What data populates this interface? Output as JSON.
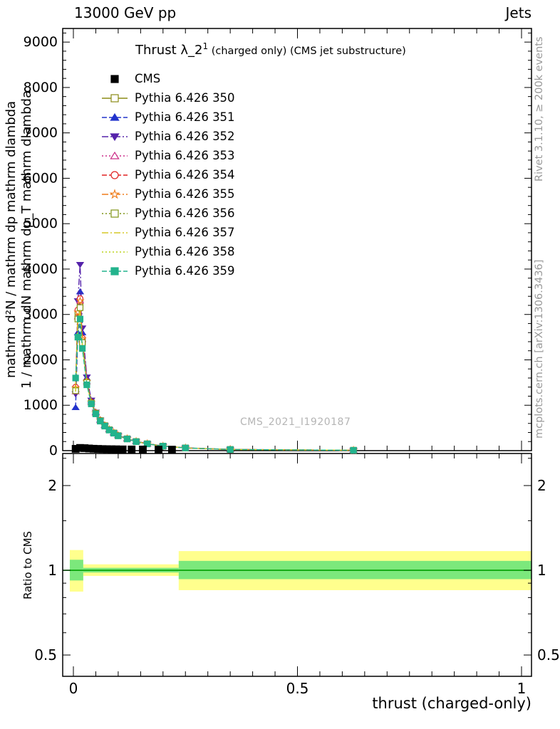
{
  "header": {
    "left": "13000 GeV pp",
    "right": "Jets"
  },
  "title": {
    "main": "Thrust λ_2",
    "sup": "1",
    "rest": " (charged only) (CMS jet substructure)"
  },
  "watermark": "CMS_2021_I1920187",
  "side_labels": {
    "rivet": "Rivet 3.1.10, ≥ 200k events",
    "mcplots": "mcplots.cern.ch [arXiv:1306.3436]",
    "ratio": "Ratio to CMS",
    "ylabel_outer": "mathrm d²N / mathrm dp mathrm dlambda",
    "ylabel_inner": "1 / mathrm dN mathrm dp_T mathrm dlambda"
  },
  "axes": {
    "x": {
      "title": "thrust (charged-only)",
      "min": -0.0238,
      "max": 1.0222,
      "ticks": [
        0,
        0.5,
        1
      ],
      "tick_labels": [
        "0",
        "0.5",
        "1"
      ],
      "minor_step": 0.05
    },
    "main_y": {
      "min": 0,
      "max": 9300,
      "major_step": 1000,
      "minor_step": 200,
      "major_ticks": [
        0,
        1000,
        2000,
        3000,
        4000,
        5000,
        6000,
        7000,
        8000,
        9000
      ]
    },
    "ratio_y": {
      "min": 0.42,
      "max": 2.6,
      "scale": "log",
      "major_ticks": [
        0.5,
        1,
        2
      ],
      "tick_labels": [
        "0.5",
        "1",
        "2"
      ],
      "minor_ticks": [
        0.6,
        0.7,
        0.8,
        0.9,
        1.5,
        2.5
      ]
    }
  },
  "legend": [
    {
      "label": "CMS",
      "color": "#000000",
      "marker": "square-filled",
      "line": "none"
    },
    {
      "label": "Pythia 6.426 350",
      "color": "#8b8b17",
      "marker": "square-open",
      "line": "solid"
    },
    {
      "label": "Pythia 6.426 351",
      "color": "#2233cc",
      "marker": "triangle-filled",
      "line": "dashed"
    },
    {
      "label": "Pythia 6.426 352",
      "color": "#5522aa",
      "marker": "triangle-down-filled",
      "line": "dashdot"
    },
    {
      "label": "Pythia 6.426 353",
      "color": "#cc2d88",
      "marker": "triangle-open",
      "line": "dotted"
    },
    {
      "label": "Pythia 6.426 354",
      "color": "#e02222",
      "marker": "circle-open",
      "line": "dashed"
    },
    {
      "label": "Pythia 6.426 355",
      "color": "#ef7b18",
      "marker": "star-open",
      "line": "dashdot"
    },
    {
      "label": "Pythia 6.426 356",
      "color": "#7f9416",
      "marker": "square-open",
      "line": "dotted"
    },
    {
      "label": "Pythia 6.426 357",
      "color": "#d6c927",
      "marker": "none",
      "line": "dashdot"
    },
    {
      "label": "Pythia 6.426 358",
      "color": "#bcd41c",
      "marker": "none",
      "line": "dotted"
    },
    {
      "label": "Pythia 6.426 359",
      "color": "#23b38d",
      "marker": "square-filled",
      "line": "dashed"
    }
  ],
  "chart_data": {
    "type": "line",
    "x": [
      0.005,
      0.01,
      0.015,
      0.02,
      0.03,
      0.04,
      0.05,
      0.06,
      0.07,
      0.08,
      0.09,
      0.1,
      0.12,
      0.14,
      0.165,
      0.2,
      0.25,
      0.35,
      0.625
    ],
    "series": [
      {
        "name": "Pythia 6.426 350",
        "color": "#8b8b17",
        "marker": "square-open",
        "line": "solid",
        "values": [
          1350,
          3000,
          3250,
          2400,
          1500,
          1050,
          820,
          660,
          550,
          460,
          390,
          330,
          260,
          200,
          150,
          100,
          60,
          25,
          8
        ]
      },
      {
        "name": "Pythia 6.426 351",
        "color": "#2233cc",
        "marker": "triangle-filled",
        "line": "dashed",
        "values": [
          950,
          2600,
          3500,
          2600,
          1600,
          1100,
          850,
          680,
          560,
          470,
          400,
          340,
          265,
          205,
          155,
          102,
          61,
          26,
          8
        ]
      },
      {
        "name": "Pythia 6.426 352",
        "color": "#5522aa",
        "marker": "triangle-down-filled",
        "line": "dashdot",
        "values": [
          1250,
          3300,
          4100,
          2700,
          1620,
          1110,
          845,
          672,
          552,
          462,
          392,
          331,
          261,
          201,
          151,
          100,
          60,
          25,
          8
        ]
      },
      {
        "name": "Pythia 6.426 353",
        "color": "#cc2d88",
        "marker": "triangle-open",
        "line": "dotted",
        "values": [
          1300,
          2950,
          3300,
          2450,
          1520,
          1060,
          830,
          665,
          552,
          462,
          392,
          332,
          262,
          202,
          152,
          101,
          60,
          25,
          8
        ]
      },
      {
        "name": "Pythia 6.426 354",
        "color": "#e02222",
        "marker": "circle-open",
        "line": "dashed",
        "values": [
          1400,
          3100,
          3350,
          2480,
          1530,
          1070,
          835,
          668,
          554,
          464,
          393,
          333,
          263,
          203,
          152,
          101,
          60,
          25,
          8
        ]
      },
      {
        "name": "Pythia 6.426 355",
        "color": "#ef7b18",
        "marker": "star-open",
        "line": "dashdot",
        "values": [
          1380,
          3050,
          3300,
          2460,
          1525,
          1065,
          832,
          666,
          553,
          463,
          392,
          332,
          262,
          202,
          152,
          101,
          60,
          25,
          8
        ]
      },
      {
        "name": "Pythia 6.426 356",
        "color": "#7f9416",
        "marker": "square-open",
        "line": "dotted",
        "values": [
          1320,
          2900,
          3150,
          2380,
          1500,
          1050,
          825,
          660,
          548,
          459,
          389,
          330,
          260,
          200,
          150,
          100,
          60,
          25,
          8
        ]
      },
      {
        "name": "Pythia 6.426 357",
        "color": "#d6c927",
        "marker": "none",
        "line": "dashdot",
        "values": [
          1300,
          2850,
          3050,
          2330,
          1480,
          1040,
          818,
          655,
          544,
          456,
          386,
          328,
          258,
          199,
          149,
          99,
          59,
          25,
          8
        ]
      },
      {
        "name": "Pythia 6.426 358",
        "color": "#bcd41c",
        "marker": "none",
        "line": "dotted",
        "values": [
          1310,
          2880,
          3100,
          2350,
          1490,
          1045,
          820,
          657,
          546,
          457,
          387,
          329,
          259,
          199,
          150,
          100,
          59,
          25,
          8
        ]
      },
      {
        "name": "Pythia 6.426 359",
        "color": "#23b38d",
        "marker": "square-filled",
        "line": "dashed",
        "values": [
          1600,
          2500,
          2900,
          2250,
          1450,
          1030,
          810,
          650,
          540,
          453,
          384,
          326,
          257,
          198,
          149,
          99,
          59,
          25,
          8
        ]
      }
    ],
    "cms": {
      "name": "CMS",
      "color": "#000000",
      "marker": "square-filled",
      "x": [
        0.005,
        0.015,
        0.025,
        0.035,
        0.045,
        0.055,
        0.065,
        0.075,
        0.085,
        0.095,
        0.11,
        0.13,
        0.155,
        0.19,
        0.22
      ],
      "values": [
        40,
        60,
        55,
        48,
        42,
        38,
        35,
        33,
        31,
        30,
        28,
        26,
        25,
        23,
        22
      ]
    },
    "ratio": {
      "line_y": 1,
      "line_color": "#00a000",
      "bands": {
        "yellow": {
          "color": "#ffff8d",
          "segments": [
            {
              "x0": -0.008,
              "x1": 0.022,
              "lo": 0.84,
              "hi": 1.18
            },
            {
              "x0": 0.022,
              "x1": 0.235,
              "lo": 0.955,
              "hi": 1.05
            },
            {
              "x0": 0.235,
              "x1": 1.022,
              "lo": 0.85,
              "hi": 1.17
            }
          ]
        },
        "green": {
          "color": "#7ce87c",
          "segments": [
            {
              "x0": -0.008,
              "x1": 0.022,
              "lo": 0.92,
              "hi": 1.09
            },
            {
              "x0": 0.022,
              "x1": 0.235,
              "lo": 0.982,
              "hi": 1.02
            },
            {
              "x0": 0.235,
              "x1": 1.022,
              "lo": 0.93,
              "hi": 1.08
            }
          ]
        }
      }
    }
  }
}
